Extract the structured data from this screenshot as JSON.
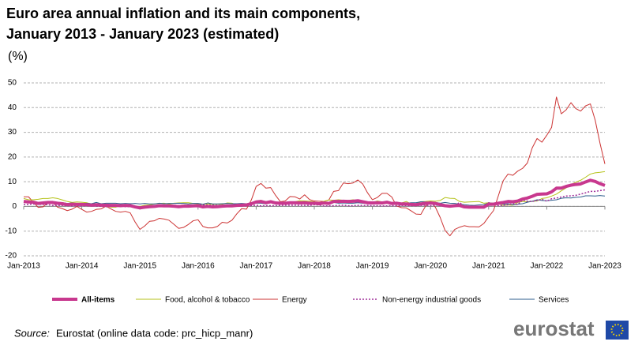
{
  "chart_data": {
    "type": "line",
    "title": [
      "Euro area annual inflation and its main components,",
      "January 2013 - January 2023 (estimated)"
    ],
    "subtitle": "(%)",
    "categories": [
      "Jan-2013",
      null,
      null,
      null,
      null,
      null,
      null,
      null,
      null,
      null,
      null,
      null,
      "Jan-2014",
      null,
      null,
      null,
      null,
      null,
      null,
      null,
      null,
      null,
      null,
      null,
      "Jan-2015",
      null,
      null,
      null,
      null,
      null,
      null,
      null,
      null,
      null,
      null,
      null,
      "Jan-2016",
      null,
      null,
      null,
      null,
      null,
      null,
      null,
      null,
      null,
      null,
      null,
      "Jan-2017",
      null,
      null,
      null,
      null,
      null,
      null,
      null,
      null,
      null,
      null,
      null,
      "Jan-2018",
      null,
      null,
      null,
      null,
      null,
      null,
      null,
      null,
      null,
      null,
      null,
      "Jan-2019",
      null,
      null,
      null,
      null,
      null,
      null,
      null,
      null,
      null,
      null,
      null,
      "Jan-2020",
      null,
      null,
      null,
      null,
      null,
      null,
      null,
      null,
      null,
      null,
      null,
      "Jan-2021",
      null,
      null,
      null,
      null,
      null,
      null,
      null,
      null,
      null,
      null,
      null,
      "Jan-2022",
      null,
      null,
      null,
      null,
      null,
      null,
      null,
      null,
      null,
      null,
      null,
      "Jan-2023"
    ],
    "ylim": [
      -20,
      50
    ],
    "yticks": [
      -20,
      -10,
      0,
      10,
      20,
      30,
      40,
      50
    ],
    "grid": true,
    "series": [
      {
        "name": "All-items",
        "color": "#c8388e",
        "width": 4,
        "dash": null,
        "values": [
          2.0,
          1.8,
          1.7,
          1.2,
          1.4,
          1.6,
          1.6,
          1.3,
          1.1,
          0.7,
          0.9,
          0.8,
          0.8,
          0.7,
          0.5,
          0.7,
          0.5,
          0.5,
          0.4,
          0.4,
          0.3,
          0.4,
          0.3,
          -0.2,
          -0.6,
          -0.3,
          -0.1,
          0.0,
          0.3,
          0.2,
          0.2,
          0.1,
          -0.1,
          0.1,
          0.1,
          0.2,
          0.3,
          -0.2,
          0.0,
          -0.2,
          -0.1,
          0.1,
          0.2,
          0.2,
          0.4,
          0.5,
          0.6,
          1.1,
          1.8,
          2.0,
          1.5,
          1.9,
          1.4,
          1.3,
          1.3,
          1.5,
          1.5,
          1.4,
          1.5,
          1.3,
          1.3,
          1.1,
          1.4,
          1.2,
          2.0,
          2.0,
          2.1,
          2.0,
          2.1,
          2.3,
          1.9,
          1.5,
          1.4,
          1.5,
          1.4,
          1.7,
          1.2,
          1.3,
          1.0,
          1.0,
          0.8,
          0.7,
          1.0,
          1.3,
          1.4,
          1.2,
          0.7,
          0.3,
          0.1,
          0.3,
          0.4,
          -0.2,
          -0.3,
          -0.3,
          -0.3,
          -0.3,
          0.9,
          0.9,
          1.3,
          1.6,
          2.0,
          1.9,
          2.2,
          3.0,
          3.4,
          4.1,
          4.9,
          5.0,
          5.1,
          5.9,
          7.4,
          7.4,
          8.1,
          8.6,
          8.9,
          9.1,
          9.9,
          10.6,
          10.1,
          9.2,
          8.5
        ]
      },
      {
        "name": "Food, alcohol & tobacco",
        "color": "#b5c21a",
        "width": 1,
        "dash": null,
        "values": [
          3.2,
          2.7,
          2.7,
          2.9,
          3.2,
          3.2,
          3.5,
          3.2,
          2.6,
          2.0,
          1.6,
          1.8,
          1.7,
          1.5,
          1.0,
          0.7,
          0.1,
          0.2,
          -0.3,
          -0.3,
          0.3,
          0.5,
          0.5,
          0.0,
          0.0,
          0.5,
          0.6,
          1.0,
          1.2,
          1.3,
          0.9,
          1.3,
          1.4,
          1.5,
          1.5,
          1.2,
          1.0,
          0.8,
          1.0,
          0.8,
          0.9,
          0.9,
          1.4,
          1.3,
          0.7,
          0.5,
          0.7,
          1.2,
          1.7,
          2.5,
          1.8,
          1.5,
          1.5,
          1.4,
          1.4,
          1.4,
          1.9,
          2.3,
          2.2,
          2.1,
          1.9,
          1.1,
          2.1,
          2.6,
          2.5,
          2.7,
          2.5,
          2.4,
          2.7,
          2.2,
          1.9,
          1.8,
          1.6,
          2.2,
          1.8,
          1.5,
          1.6,
          1.6,
          1.4,
          2.0,
          1.0,
          1.1,
          1.9,
          2.0,
          2.2,
          2.1,
          2.4,
          3.6,
          3.3,
          3.2,
          2.0,
          1.7,
          1.8,
          1.9,
          2.0,
          1.3,
          1.5,
          1.3,
          1.1,
          0.4,
          0.6,
          0.5,
          1.6,
          2.0,
          1.9,
          2.0,
          2.2,
          3.2,
          3.5,
          4.2,
          5.0,
          6.3,
          7.5,
          8.9,
          9.8,
          10.6,
          11.8,
          13.1,
          13.6,
          13.8,
          14.1
        ]
      },
      {
        "name": "Energy",
        "color": "#cc3333",
        "width": 1,
        "dash": null,
        "values": [
          3.9,
          3.9,
          1.7,
          -0.4,
          -0.2,
          1.6,
          1.6,
          -0.3,
          -0.9,
          -1.7,
          -1.1,
          0.0,
          -1.2,
          -2.3,
          -2.0,
          -1.2,
          -1.0,
          0.1,
          -1.0,
          -2.0,
          -2.3,
          -2.0,
          -2.6,
          -6.3,
          -9.3,
          -7.9,
          -6.0,
          -5.8,
          -4.8,
          -5.1,
          -5.6,
          -7.2,
          -8.9,
          -8.5,
          -7.3,
          -5.8,
          -5.4,
          -8.1,
          -8.7,
          -8.7,
          -8.1,
          -6.4,
          -6.7,
          -5.6,
          -3.0,
          -0.9,
          -1.1,
          2.6,
          8.1,
          9.3,
          7.4,
          7.6,
          4.5,
          1.9,
          2.2,
          4.0,
          3.9,
          3.0,
          4.7,
          2.8,
          2.2,
          2.1,
          2.0,
          2.6,
          6.1,
          6.4,
          9.5,
          9.2,
          9.5,
          10.7,
          9.1,
          5.5,
          2.7,
          3.6,
          5.3,
          5.3,
          3.8,
          0.2,
          -0.5,
          -0.6,
          -1.8,
          -3.1,
          -3.2,
          0.2,
          1.9,
          -0.3,
          -4.5,
          -9.7,
          -11.9,
          -9.3,
          -8.4,
          -7.8,
          -8.2,
          -8.2,
          -8.3,
          -6.9,
          -4.2,
          -1.7,
          4.3,
          10.4,
          13.1,
          12.6,
          14.3,
          15.4,
          17.6,
          23.7,
          27.5,
          26.0,
          28.8,
          32.0,
          44.3,
          37.5,
          39.1,
          42.0,
          39.6,
          38.6,
          40.7,
          41.5,
          34.9,
          25.5,
          17.2
        ]
      },
      {
        "name": "Non-energy industrial goods",
        "color": "#a0309a",
        "width": 1.5,
        "dash": "2,2",
        "values": [
          0.8,
          0.8,
          1.0,
          0.8,
          0.8,
          0.7,
          0.4,
          0.4,
          0.4,
          0.3,
          0.2,
          0.3,
          0.2,
          0.4,
          0.2,
          0.1,
          0.0,
          -0.1,
          0.0,
          0.3,
          0.2,
          -0.1,
          -0.1,
          -0.1,
          -0.1,
          -0.6,
          -0.2,
          0.1,
          0.2,
          0.3,
          0.4,
          0.5,
          0.3,
          0.5,
          0.5,
          0.5,
          0.7,
          0.7,
          0.5,
          0.5,
          0.4,
          0.4,
          0.4,
          0.3,
          0.3,
          0.3,
          0.3,
          0.3,
          0.5,
          0.2,
          0.3,
          0.3,
          0.3,
          0.4,
          0.5,
          0.5,
          0.5,
          0.4,
          0.4,
          0.4,
          0.7,
          0.6,
          0.2,
          0.2,
          0.3,
          0.4,
          0.5,
          0.3,
          0.3,
          0.4,
          0.4,
          0.4,
          0.3,
          0.3,
          0.2,
          0.2,
          0.3,
          0.2,
          0.4,
          0.3,
          0.3,
          0.3,
          0.4,
          0.5,
          0.3,
          0.5,
          0.5,
          0.3,
          0.2,
          0.2,
          1.6,
          -0.1,
          -0.1,
          -0.1,
          -0.3,
          -0.5,
          1.5,
          1.0,
          0.3,
          0.4,
          0.7,
          1.2,
          0.7,
          2.6,
          2.1,
          2.0,
          2.4,
          2.9,
          2.1,
          3.1,
          3.4,
          3.8,
          4.2,
          4.3,
          4.5,
          5.0,
          5.5,
          6.1,
          6.1,
          6.4,
          6.7
        ]
      },
      {
        "name": "Services",
        "color": "#2e5e8c",
        "width": 1,
        "dash": null,
        "values": [
          1.6,
          1.5,
          1.8,
          1.1,
          1.5,
          1.4,
          1.4,
          1.4,
          1.5,
          1.2,
          1.4,
          1.0,
          1.2,
          1.3,
          1.1,
          1.6,
          1.1,
          1.3,
          1.3,
          1.3,
          1.1,
          1.2,
          1.1,
          1.2,
          1.0,
          1.2,
          1.0,
          1.0,
          1.3,
          1.1,
          1.2,
          1.2,
          1.3,
          1.2,
          1.0,
          1.2,
          1.2,
          0.9,
          1.4,
          1.0,
          1.0,
          1.1,
          1.2,
          1.1,
          1.1,
          1.2,
          1.1,
          1.3,
          1.3,
          1.3,
          1.0,
          1.8,
          1.3,
          1.6,
          1.6,
          1.6,
          1.5,
          1.2,
          1.2,
          1.2,
          1.2,
          1.3,
          1.5,
          1.0,
          1.6,
          1.3,
          1.4,
          1.3,
          1.3,
          1.5,
          1.3,
          1.3,
          1.2,
          1.4,
          1.1,
          1.9,
          1.0,
          1.6,
          1.2,
          1.3,
          1.5,
          1.5,
          1.9,
          1.8,
          1.5,
          1.6,
          1.3,
          1.6,
          1.3,
          1.2,
          0.9,
          0.7,
          0.5,
          0.4,
          0.6,
          0.7,
          1.4,
          1.3,
          1.3,
          0.9,
          1.1,
          0.7,
          0.9,
          1.1,
          1.7,
          2.1,
          2.7,
          2.4,
          2.3,
          2.5,
          2.7,
          3.3,
          3.5,
          3.4,
          3.7,
          3.8,
          4.3,
          4.3,
          4.2,
          4.4,
          4.2
        ]
      }
    ],
    "source_label": "Source:",
    "source_text": "Eurostat (online data code: prc_hicp_manr)",
    "logo": "eurostat"
  }
}
